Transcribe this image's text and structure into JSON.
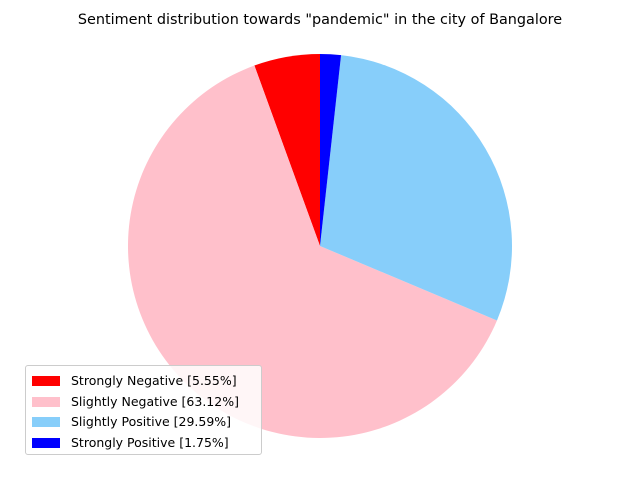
{
  "chart_data": {
    "type": "pie",
    "title": "Sentiment distribution towards \"pandemic\" in the city of Bangalore",
    "categories": [
      "Strongly Negative",
      "Slightly Negative",
      "Slightly Positive",
      "Strongly Positive"
    ],
    "values": [
      5.55,
      63.12,
      29.59,
      1.75
    ],
    "colors": [
      "#ff0000",
      "#ffc0cb",
      "#87cefa",
      "#0000ff"
    ],
    "legend_labels": [
      "Strongly Negative [5.55%]",
      "Slightly Negative [63.12%]",
      "Slightly Positive [29.59%]",
      "Strongly Positive [1.75%]"
    ],
    "start_angle_deg": 90,
    "direction": "counterclockwise",
    "legend_position": "lower-left"
  }
}
